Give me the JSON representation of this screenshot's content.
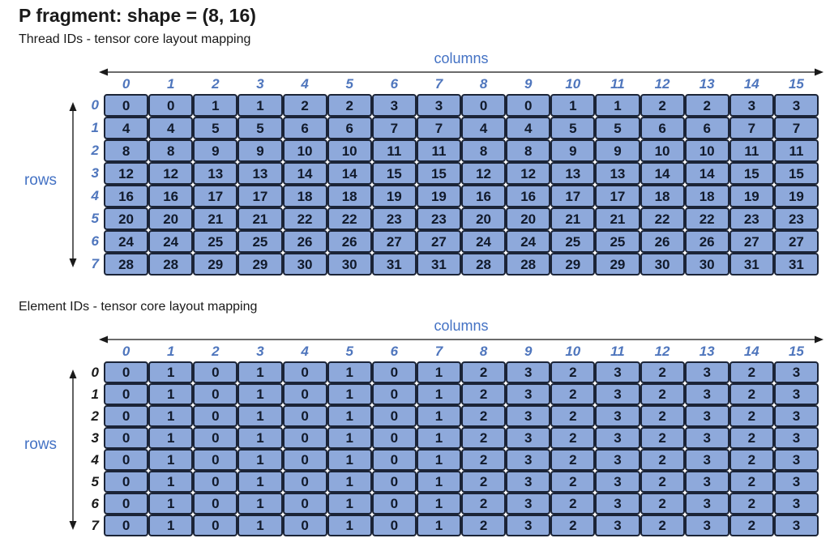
{
  "title": "P fragment: shape = (8, 16)",
  "colors": {
    "cell_fill": "#8EA9DB",
    "cell_border": "#1B2437",
    "accent_blue": "#4472C4",
    "cell_text": "#111A2B",
    "dark_row_header": "#1A1A1A"
  },
  "tables": [
    {
      "subtitle": "Thread IDs - tensor core layout mapping",
      "columns_label": "columns",
      "rows_label": "rows",
      "col_headers": [
        "0",
        "1",
        "2",
        "3",
        "4",
        "5",
        "6",
        "7",
        "8",
        "9",
        "10",
        "11",
        "12",
        "13",
        "14",
        "15"
      ],
      "row_headers": [
        "0",
        "1",
        "2",
        "3",
        "4",
        "5",
        "6",
        "7"
      ],
      "row_header_color": "#4F76BD",
      "values": [
        [
          0,
          0,
          1,
          1,
          2,
          2,
          3,
          3,
          0,
          0,
          1,
          1,
          2,
          2,
          3,
          3
        ],
        [
          4,
          4,
          5,
          5,
          6,
          6,
          7,
          7,
          4,
          4,
          5,
          5,
          6,
          6,
          7,
          7
        ],
        [
          8,
          8,
          9,
          9,
          10,
          10,
          11,
          11,
          8,
          8,
          9,
          9,
          10,
          10,
          11,
          11
        ],
        [
          12,
          12,
          13,
          13,
          14,
          14,
          15,
          15,
          12,
          12,
          13,
          13,
          14,
          14,
          15,
          15
        ],
        [
          16,
          16,
          17,
          17,
          18,
          18,
          19,
          19,
          16,
          16,
          17,
          17,
          18,
          18,
          19,
          19
        ],
        [
          20,
          20,
          21,
          21,
          22,
          22,
          23,
          23,
          20,
          20,
          21,
          21,
          22,
          22,
          23,
          23
        ],
        [
          24,
          24,
          25,
          25,
          26,
          26,
          27,
          27,
          24,
          24,
          25,
          25,
          26,
          26,
          27,
          27
        ],
        [
          28,
          28,
          29,
          29,
          30,
          30,
          31,
          31,
          28,
          28,
          29,
          29,
          30,
          30,
          31,
          31
        ]
      ]
    },
    {
      "subtitle": "Element IDs - tensor core layout mapping",
      "columns_label": "columns",
      "rows_label": "rows",
      "col_headers": [
        "0",
        "1",
        "2",
        "3",
        "4",
        "5",
        "6",
        "7",
        "8",
        "9",
        "10",
        "11",
        "12",
        "13",
        "14",
        "15"
      ],
      "row_headers": [
        "0",
        "1",
        "2",
        "3",
        "4",
        "5",
        "6",
        "7"
      ],
      "row_header_color": "#1A1A1A",
      "values": [
        [
          0,
          1,
          0,
          1,
          0,
          1,
          0,
          1,
          2,
          3,
          2,
          3,
          2,
          3,
          2,
          3
        ],
        [
          0,
          1,
          0,
          1,
          0,
          1,
          0,
          1,
          2,
          3,
          2,
          3,
          2,
          3,
          2,
          3
        ],
        [
          0,
          1,
          0,
          1,
          0,
          1,
          0,
          1,
          2,
          3,
          2,
          3,
          2,
          3,
          2,
          3
        ],
        [
          0,
          1,
          0,
          1,
          0,
          1,
          0,
          1,
          2,
          3,
          2,
          3,
          2,
          3,
          2,
          3
        ],
        [
          0,
          1,
          0,
          1,
          0,
          1,
          0,
          1,
          2,
          3,
          2,
          3,
          2,
          3,
          2,
          3
        ],
        [
          0,
          1,
          0,
          1,
          0,
          1,
          0,
          1,
          2,
          3,
          2,
          3,
          2,
          3,
          2,
          3
        ],
        [
          0,
          1,
          0,
          1,
          0,
          1,
          0,
          1,
          2,
          3,
          2,
          3,
          2,
          3,
          2,
          3
        ],
        [
          0,
          1,
          0,
          1,
          0,
          1,
          0,
          1,
          2,
          3,
          2,
          3,
          2,
          3,
          2,
          3
        ]
      ]
    }
  ]
}
